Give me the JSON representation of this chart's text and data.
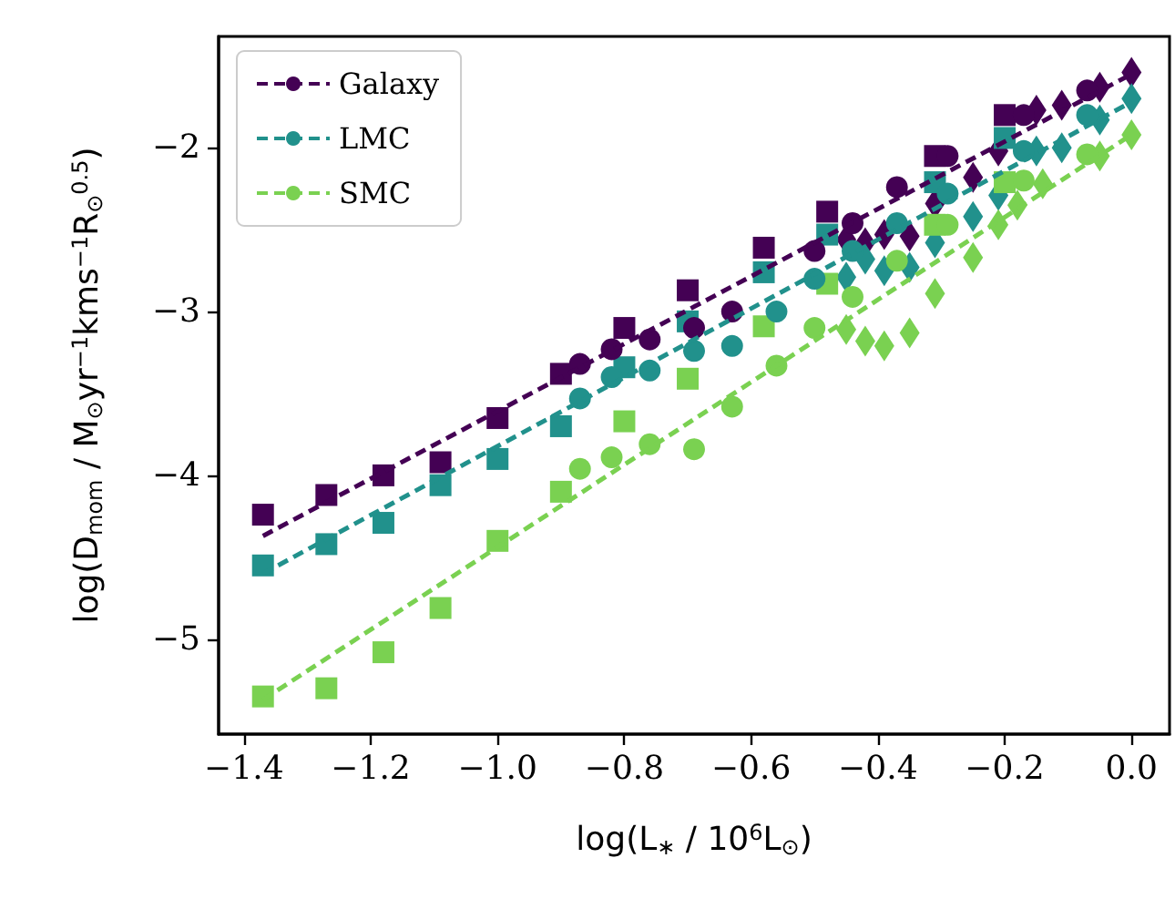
{
  "chart_data": {
    "type": "scatter",
    "xlabel": "log(L$_{∗}$ / 10$^{6}$L$_{⊙}$)",
    "ylabel": "log(D$_{mom}$ / M$_{⊙}$yr$^{−1}$kms$^{−1}$R$_{⊙}$$^{0.5}$)",
    "xlim": [
      -1.44,
      0.06
    ],
    "ylim": [
      -5.58,
      -1.32
    ],
    "xticks": [
      {
        "value": -1.4,
        "label": "−1.4"
      },
      {
        "value": -1.2,
        "label": "−1.2"
      },
      {
        "value": -1.0,
        "label": "−1.0"
      },
      {
        "value": -0.8,
        "label": "−0.8"
      },
      {
        "value": -0.6,
        "label": "−0.6"
      },
      {
        "value": -0.4,
        "label": "−0.4"
      },
      {
        "value": -0.2,
        "label": "−0.2"
      },
      {
        "value": 0.0,
        "label": "0.0"
      }
    ],
    "yticks": [
      {
        "value": -5,
        "label": "−5"
      },
      {
        "value": -4,
        "label": "−4"
      },
      {
        "value": -3,
        "label": "−3"
      },
      {
        "value": -2,
        "label": "−2"
      }
    ],
    "grid": false,
    "legend": "top left",
    "series": [
      {
        "name": "Galaxy",
        "type": "line",
        "color": "#440154",
        "line_style": "dashed",
        "marker": "none",
        "x": [
          -1.37,
          0.0
        ],
        "values": [
          -4.37,
          -1.55
        ]
      },
      {
        "name": "LMC",
        "type": "line",
        "color": "#21918c",
        "line_style": "dashed",
        "marker": "none",
        "x": [
          -1.37,
          0.0
        ],
        "values": [
          -4.6,
          -1.72
        ]
      },
      {
        "name": "SMC",
        "type": "line",
        "color": "#7ad151",
        "line_style": "dashed",
        "marker": "none",
        "x": [
          -1.37,
          0.0
        ],
        "values": [
          -5.37,
          -1.92
        ]
      },
      {
        "color": "#440154",
        "marker": "square",
        "x": [
          -1.37,
          -1.27,
          -1.18,
          -1.09,
          -1.0,
          -0.9,
          -0.8,
          -0.7,
          -0.58,
          -0.48,
          -0.31,
          -0.2
        ],
        "values": [
          -4.24,
          -4.12,
          -4.0,
          -3.92,
          -3.65,
          -3.38,
          -3.1,
          -2.87,
          -2.61,
          -2.39,
          -2.05,
          -1.8
        ]
      },
      {
        "color": "#440154",
        "marker": "circle",
        "x": [
          -0.87,
          -0.82,
          -0.76,
          -0.69,
          -0.63,
          -0.5,
          -0.44,
          -0.37,
          -0.29,
          -0.17,
          -0.07
        ],
        "values": [
          -3.32,
          -3.23,
          -3.17,
          -3.1,
          -3.0,
          -2.63,
          -2.46,
          -2.24,
          -2.05,
          -1.8,
          -1.65
        ]
      },
      {
        "color": "#440154",
        "marker": "diamond",
        "x": [
          -0.45,
          -0.42,
          -0.39,
          -0.35,
          -0.31,
          -0.25,
          -0.21,
          -0.15,
          -0.11,
          -0.05,
          0.0
        ],
        "values": [
          -2.56,
          -2.58,
          -2.53,
          -2.54,
          -2.34,
          -2.18,
          -2.02,
          -1.77,
          -1.74,
          -1.63,
          -1.54
        ]
      },
      {
        "color": "#21918c",
        "marker": "square",
        "x": [
          -1.37,
          -1.27,
          -1.18,
          -1.09,
          -1.0,
          -0.9,
          -0.8,
          -0.7,
          -0.58,
          -0.48,
          -0.31,
          -0.2
        ],
        "values": [
          -4.55,
          -4.42,
          -4.29,
          -4.06,
          -3.9,
          -3.7,
          -3.34,
          -3.06,
          -2.76,
          -2.53,
          -2.21,
          -1.94
        ]
      },
      {
        "color": "#21918c",
        "marker": "circle",
        "x": [
          -0.87,
          -0.82,
          -0.76,
          -0.69,
          -0.63,
          -0.56,
          -0.5,
          -0.44,
          -0.37,
          -0.29,
          -0.17,
          -0.07
        ],
        "values": [
          -3.53,
          -3.4,
          -3.36,
          -3.24,
          -3.21,
          -3.0,
          -2.8,
          -2.63,
          -2.46,
          -2.28,
          -2.02,
          -1.8
        ]
      },
      {
        "color": "#21918c",
        "marker": "diamond",
        "x": [
          -0.45,
          -0.42,
          -0.39,
          -0.35,
          -0.31,
          -0.25,
          -0.21,
          -0.15,
          -0.11,
          -0.05,
          0.0
        ],
        "values": [
          -2.79,
          -2.68,
          -2.75,
          -2.73,
          -2.58,
          -2.42,
          -2.29,
          -2.02,
          -2.0,
          -1.83,
          -1.7
        ]
      },
      {
        "color": "#7ad151",
        "marker": "square",
        "x": [
          -1.37,
          -1.27,
          -1.18,
          -1.09,
          -1.0,
          -0.9,
          -0.8,
          -0.7,
          -0.58,
          -0.48,
          -0.31,
          -0.2
        ],
        "values": [
          -5.35,
          -5.3,
          -5.08,
          -4.81,
          -4.4,
          -4.1,
          -3.67,
          -3.41,
          -3.09,
          -2.83,
          -2.47,
          -2.21
        ]
      },
      {
        "color": "#7ad151",
        "marker": "circle",
        "x": [
          -0.87,
          -0.82,
          -0.76,
          -0.69,
          -0.63,
          -0.56,
          -0.5,
          -0.44,
          -0.37,
          -0.29,
          -0.17,
          -0.07
        ],
        "values": [
          -3.96,
          -3.89,
          -3.81,
          -3.84,
          -3.58,
          -3.33,
          -3.1,
          -2.91,
          -2.69,
          -2.47,
          -2.2,
          -2.04
        ]
      },
      {
        "color": "#7ad151",
        "marker": "diamond",
        "x": [
          -0.45,
          -0.42,
          -0.39,
          -0.35,
          -0.31,
          -0.25,
          -0.21,
          -0.18,
          -0.14,
          -0.05,
          0.0
        ],
        "values": [
          -3.11,
          -3.18,
          -3.21,
          -3.13,
          -2.89,
          -2.67,
          -2.47,
          -2.35,
          -2.22,
          -2.05,
          -1.92
        ]
      }
    ]
  }
}
